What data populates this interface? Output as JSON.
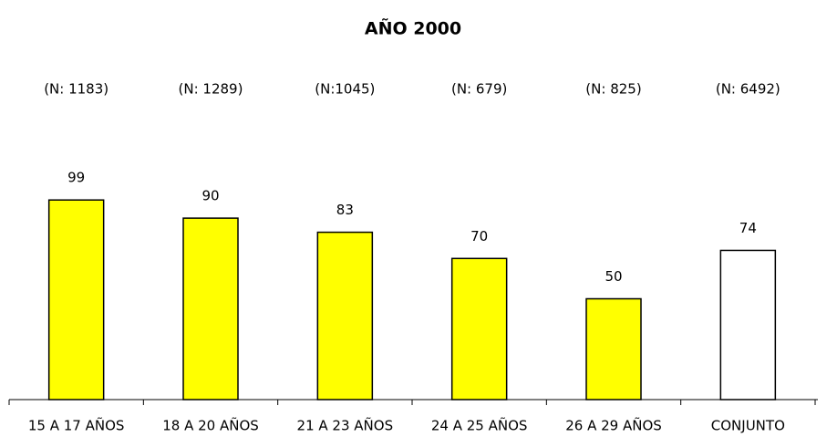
{
  "chart_data": {
    "type": "bar",
    "title": "AÑO 2000",
    "categories": [
      "15 A 17 AÑOS",
      "18 A 20 AÑOS",
      "21 A 23 AÑOS",
      "24 A 25 AÑOS",
      "26 A 29 AÑOS",
      "CONJUNTO"
    ],
    "annotations": [
      "(N: 1183)",
      "(N: 1289)",
      "(N:1045)",
      "(N: 679)",
      "(N: 825)",
      "(N: 6492)"
    ],
    "values": [
      99,
      90,
      83,
      70,
      50,
      74
    ],
    "colors": [
      "#ffff00",
      "#ffff00",
      "#ffff00",
      "#ffff00",
      "#ffff00",
      "#ffffff"
    ]
  }
}
